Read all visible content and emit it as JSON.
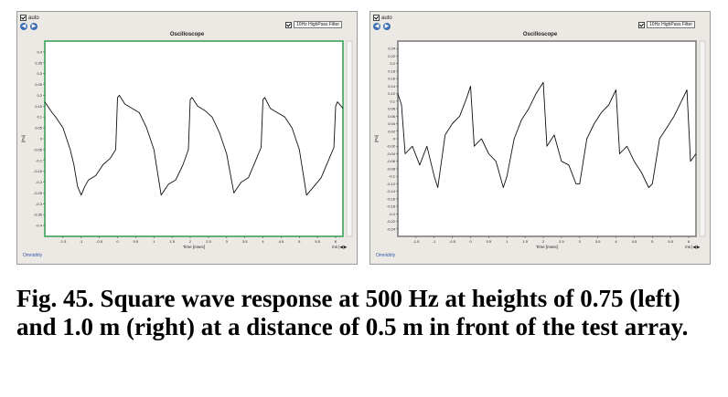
{
  "panels": [
    {
      "auto_label": "auto",
      "title": "Oscilloscope",
      "filter_label": "10Hz HighPass Filter",
      "xlabel": "Time [msec]",
      "ylabel": "[Pa]",
      "ms_label": "ms",
      "link": "Omnidirly",
      "frame_color": "#2e9e4f",
      "trace_color": "#111111",
      "chart_data": {
        "type": "line",
        "xlim": [
          -2,
          6.2
        ],
        "ylim": [
          -0.45,
          0.45
        ],
        "xticks": [
          "-1.5",
          "-1",
          "-0.5",
          "0",
          "0.5",
          "1",
          "1.5",
          "2",
          "2.5",
          "3",
          "3.5",
          "4",
          "4.5",
          "5",
          "5.5",
          "6"
        ],
        "yticks": [
          "0.4",
          "0.35",
          "0.3",
          "0.25",
          "0.2",
          "0.15",
          "0.1",
          "0.05",
          "0",
          "-0.05",
          "-0.1",
          "-0.15",
          "-0.2",
          "-0.25",
          "-0.3",
          "-0.35",
          "-0.4"
        ],
        "x": [
          -2.0,
          -1.8,
          -1.7,
          -1.5,
          -1.3,
          -1.2,
          -1.1,
          -1.0,
          -0.9,
          -0.8,
          -0.6,
          -0.4,
          -0.2,
          -0.05,
          0.0,
          0.05,
          0.2,
          0.4,
          0.6,
          0.8,
          1.0,
          1.2,
          1.4,
          1.6,
          1.8,
          1.95,
          2.0,
          2.05,
          2.2,
          2.4,
          2.6,
          2.8,
          3.0,
          3.2,
          3.4,
          3.6,
          3.8,
          3.95,
          4.0,
          4.05,
          4.2,
          4.4,
          4.6,
          4.8,
          5.0,
          5.2,
          5.4,
          5.6,
          5.8,
          5.95,
          6.0,
          6.05,
          6.2
        ],
        "y": [
          0.17,
          0.12,
          0.1,
          0.05,
          -0.05,
          -0.12,
          -0.22,
          -0.26,
          -0.22,
          -0.19,
          -0.17,
          -0.12,
          -0.09,
          -0.05,
          0.19,
          0.2,
          0.16,
          0.14,
          0.12,
          0.05,
          -0.05,
          -0.26,
          -0.21,
          -0.19,
          -0.12,
          -0.05,
          0.18,
          0.19,
          0.15,
          0.13,
          0.1,
          0.03,
          -0.07,
          -0.25,
          -0.2,
          -0.18,
          -0.1,
          -0.04,
          0.18,
          0.19,
          0.14,
          0.12,
          0.1,
          0.05,
          -0.05,
          -0.26,
          -0.22,
          -0.18,
          -0.1,
          -0.04,
          0.15,
          0.17,
          0.14
        ]
      }
    },
    {
      "auto_label": "auto",
      "title": "Oscilloscope",
      "filter_label": "10Hz HighPass Filter",
      "xlabel": "Time [msec]",
      "ylabel": "[Pa]",
      "ms_label": "ms",
      "link": "Omnidirly",
      "frame_color": "#777777",
      "trace_color": "#111111",
      "chart_data": {
        "type": "line",
        "xlim": [
          -2,
          6.2
        ],
        "ylim": [
          -0.26,
          0.26
        ],
        "xticks": [
          "-1.5",
          "-1",
          "-0.5",
          "0",
          "0.5",
          "1",
          "1.5",
          "2",
          "2.5",
          "3",
          "3.5",
          "4",
          "4.5",
          "5",
          "5.5",
          "6"
        ],
        "yticks": [
          "0.24",
          "0.22",
          "0.2",
          "0.18",
          "0.16",
          "0.14",
          "0.12",
          "0.1",
          "0.08",
          "0.06",
          "0.04",
          "0.02",
          "0",
          "-0.02",
          "-0.04",
          "-0.06",
          "-0.08",
          "-0.1",
          "-0.12",
          "-0.14",
          "-0.16",
          "-0.18",
          "-0.2",
          "-0.22",
          "-0.24"
        ],
        "x": [
          -2.0,
          -1.9,
          -1.8,
          -1.6,
          -1.4,
          -1.2,
          -1.0,
          -0.9,
          -0.7,
          -0.5,
          -0.3,
          -0.1,
          0.0,
          0.1,
          0.3,
          0.5,
          0.7,
          0.9,
          1.0,
          1.2,
          1.4,
          1.6,
          1.8,
          2.0,
          2.1,
          2.3,
          2.5,
          2.7,
          2.9,
          3.0,
          3.2,
          3.4,
          3.6,
          3.8,
          4.0,
          4.1,
          4.3,
          4.5,
          4.7,
          4.9,
          5.0,
          5.2,
          5.4,
          5.6,
          5.8,
          5.95,
          6.05,
          6.2
        ],
        "y": [
          0.12,
          0.09,
          -0.04,
          -0.02,
          -0.07,
          -0.02,
          -0.1,
          -0.13,
          0.01,
          0.04,
          0.06,
          0.11,
          0.14,
          -0.02,
          0.0,
          -0.04,
          -0.06,
          -0.13,
          -0.1,
          0.0,
          0.05,
          0.08,
          0.12,
          0.15,
          -0.02,
          0.01,
          -0.06,
          -0.07,
          -0.12,
          -0.12,
          0.0,
          0.04,
          0.07,
          0.09,
          0.13,
          -0.04,
          -0.02,
          -0.06,
          -0.09,
          -0.13,
          -0.12,
          0.0,
          0.03,
          0.06,
          0.1,
          0.13,
          -0.06,
          -0.04
        ]
      }
    }
  ],
  "caption": "Fig. 45. Square wave response at 500 Hz at heights of 0.75 (left) and 1.0 m (right) at a distance of 0.5 m in front of the test array."
}
